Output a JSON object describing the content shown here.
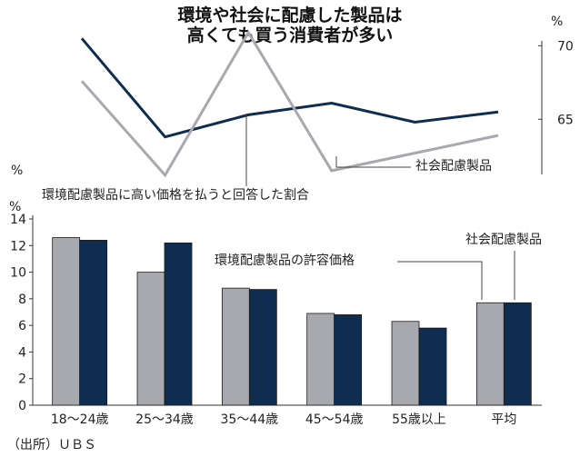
{
  "title_lines": [
    "環境や社会に配慮した製品は",
    "高くても買う消費者が多い"
  ],
  "colors": {
    "navy": "#0f2d50",
    "gray": "#a7a9ae",
    "text": "#222222",
    "axis": "#333333"
  },
  "source": "（出所）ＵＢＳ",
  "chart_data": [
    {
      "type": "line",
      "ylabel": "%",
      "ylim": [
        61,
        72
      ],
      "yticks": [
        65,
        70
      ],
      "categories": [
        "18〜24歳",
        "25〜34歳",
        "35〜44歳",
        "45〜54歳",
        "55歳以上",
        "平均"
      ],
      "series": [
        {
          "key": "navy",
          "values": [
            70.5,
            63.8,
            65.3,
            66.1,
            64.8,
            65.5
          ]
        },
        {
          "key": "gray",
          "name": "社会配慮製品",
          "values": [
            67.6,
            61.2,
            70.9,
            61.5,
            62.7,
            63.9
          ]
        }
      ],
      "annotations": [
        "社会配慮製品",
        "環境配慮製品に高い価格を払うと回答した割合"
      ]
    },
    {
      "type": "bar",
      "ylabel": "%",
      "ylim": [
        0,
        14
      ],
      "yticks": [
        0,
        2,
        4,
        6,
        8,
        10,
        12,
        14
      ],
      "categories": [
        "18〜24歳",
        "25〜34歳",
        "35〜44歳",
        "45〜54歳",
        "55歳以上",
        "平均"
      ],
      "series": [
        {
          "key": "gray",
          "name": "社会配慮製品",
          "values": [
            12.6,
            10.0,
            8.8,
            6.9,
            6.3,
            7.7
          ]
        },
        {
          "key": "navy",
          "name": "環境配慮製品の許容価格",
          "values": [
            12.4,
            12.2,
            8.7,
            6.8,
            5.8,
            7.7
          ]
        }
      ],
      "annotations": [
        "環境配慮製品の許容価格",
        "社会配慮製品"
      ]
    }
  ]
}
